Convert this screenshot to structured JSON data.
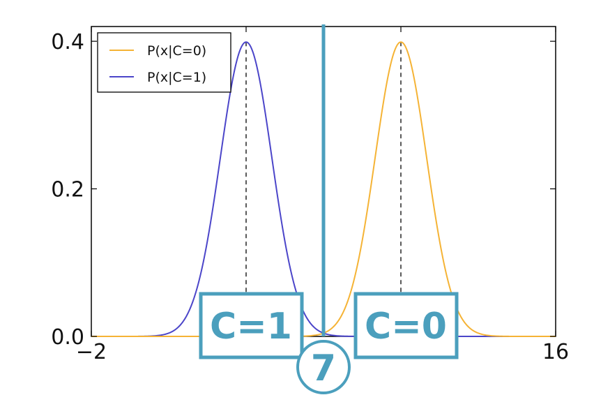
{
  "chart_data": {
    "type": "line",
    "title": "",
    "xlabel": "",
    "ylabel": "",
    "xlim": [
      -2,
      16
    ],
    "ylim": [
      0,
      0.42
    ],
    "x_tick_labels": [
      "−2",
      "16"
    ],
    "x_tick_values": [
      -2,
      16
    ],
    "y_tick_labels": [
      "0.0",
      "0.2",
      "0.4"
    ],
    "y_tick_values": [
      0.0,
      0.2,
      0.4
    ],
    "grid": false,
    "legend_position": "top-left",
    "series": [
      {
        "name": "P(x|C=0)",
        "distribution": "normal",
        "mean": 10,
        "std": 1,
        "color": "#f5b335"
      },
      {
        "name": "P(x|C=1)",
        "distribution": "normal",
        "mean": 4,
        "std": 1,
        "color": "#4b45c9"
      }
    ],
    "mean_markers": [
      4,
      10
    ],
    "decision_boundary": {
      "x": 7,
      "label": "7",
      "color": "#4b9fbd"
    },
    "region_labels": [
      {
        "text": "C=1",
        "x": 4
      },
      {
        "text": "C=0",
        "x": 10
      }
    ]
  }
}
